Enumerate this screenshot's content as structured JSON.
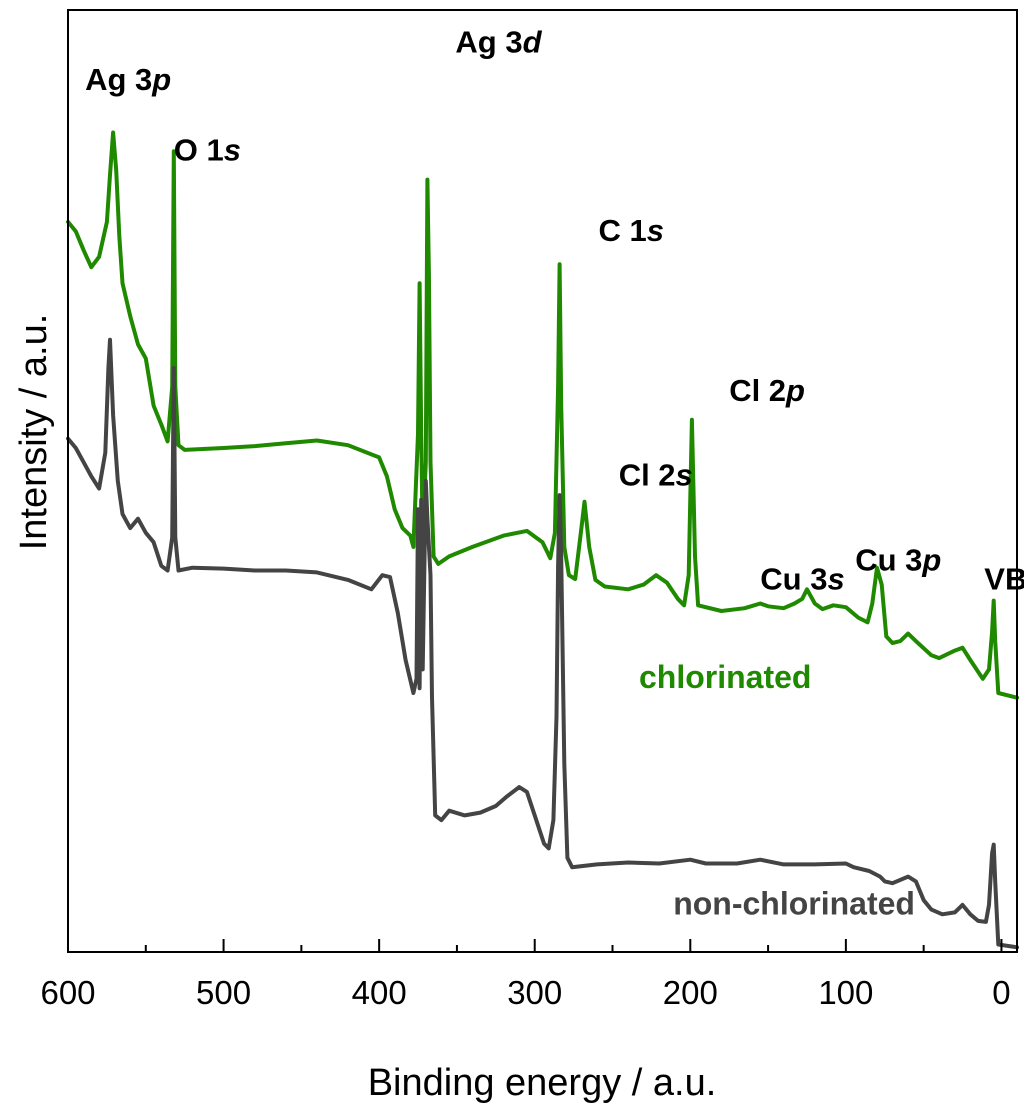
{
  "chart_data": {
    "type": "line",
    "title": "",
    "xlabel": "Binding energy / a.u.",
    "ylabel": "Intensity / a.u.",
    "xlim": [
      600,
      -10
    ],
    "x_reversed": true,
    "ylim": [
      0,
      100
    ],
    "y_ticks_shown": false,
    "x_ticks": [
      600,
      500,
      400,
      300,
      200,
      100,
      0
    ],
    "x_tick_labels": [
      "600",
      "500",
      "400",
      "300",
      "200",
      "100",
      "0"
    ],
    "grid": false,
    "series": [
      {
        "name": "chlorinated",
        "label": "chlorinated",
        "color": "#1f8a00",
        "points": [
          [
            600,
            77.5
          ],
          [
            595,
            76.5
          ],
          [
            590,
            74.5
          ],
          [
            585,
            72.7
          ],
          [
            580,
            73.8
          ],
          [
            575,
            77.5
          ],
          [
            573,
            82.5
          ],
          [
            571,
            87.0
          ],
          [
            569,
            83.0
          ],
          [
            567,
            76.0
          ],
          [
            565,
            71.0
          ],
          [
            560,
            67.5
          ],
          [
            555,
            64.5
          ],
          [
            550,
            63.0
          ],
          [
            545,
            58.0
          ],
          [
            540,
            56.0
          ],
          [
            536,
            54.2
          ],
          [
            533,
            60.0
          ],
          [
            532,
            85.0
          ],
          [
            531,
            60.0
          ],
          [
            529,
            53.8
          ],
          [
            525,
            53.3
          ],
          [
            500,
            53.5
          ],
          [
            480,
            53.7
          ],
          [
            460,
            54.0
          ],
          [
            440,
            54.3
          ],
          [
            420,
            53.8
          ],
          [
            400,
            52.5
          ],
          [
            395,
            50.5
          ],
          [
            390,
            47.0
          ],
          [
            385,
            45.0
          ],
          [
            380,
            44.2
          ],
          [
            378,
            43.0
          ],
          [
            375,
            55.0
          ],
          [
            374,
            71.0
          ],
          [
            373,
            55.0
          ],
          [
            372,
            44.0
          ],
          [
            370,
            52.0
          ],
          [
            369,
            82.0
          ],
          [
            368,
            72.0
          ],
          [
            367,
            52.0
          ],
          [
            365,
            42.0
          ],
          [
            362,
            41.2
          ],
          [
            355,
            42.0
          ],
          [
            340,
            43.0
          ],
          [
            320,
            44.2
          ],
          [
            305,
            44.7
          ],
          [
            295,
            43.5
          ],
          [
            290,
            41.8
          ],
          [
            287,
            44.5
          ],
          [
            285,
            60.0
          ],
          [
            284,
            73.0
          ],
          [
            283,
            58.0
          ],
          [
            281,
            43.0
          ],
          [
            278,
            40.0
          ],
          [
            274,
            39.6
          ],
          [
            270,
            45.0
          ],
          [
            268,
            47.8
          ],
          [
            265,
            43.0
          ],
          [
            261,
            39.5
          ],
          [
            255,
            38.8
          ],
          [
            240,
            38.5
          ],
          [
            230,
            39.0
          ],
          [
            222,
            40.0
          ],
          [
            215,
            39.2
          ],
          [
            208,
            37.5
          ],
          [
            204,
            36.8
          ],
          [
            201,
            40.0
          ],
          [
            199,
            56.5
          ],
          [
            197,
            42.0
          ],
          [
            195,
            36.8
          ],
          [
            180,
            36.2
          ],
          [
            165,
            36.5
          ],
          [
            155,
            37.0
          ],
          [
            150,
            36.7
          ],
          [
            140,
            36.5
          ],
          [
            133,
            37.0
          ],
          [
            128,
            37.5
          ],
          [
            125,
            38.5
          ],
          [
            120,
            37.0
          ],
          [
            115,
            36.4
          ],
          [
            108,
            36.8
          ],
          [
            100,
            36.6
          ],
          [
            92,
            35.5
          ],
          [
            86,
            35.0
          ],
          [
            83,
            37.0
          ],
          [
            80,
            40.8
          ],
          [
            77,
            39.0
          ],
          [
            74,
            33.5
          ],
          [
            70,
            32.8
          ],
          [
            65,
            33.0
          ],
          [
            60,
            33.8
          ],
          [
            55,
            33.0
          ],
          [
            45,
            31.5
          ],
          [
            40,
            31.2
          ],
          [
            30,
            32.0
          ],
          [
            25,
            32.3
          ],
          [
            20,
            31.0
          ],
          [
            12,
            29.0
          ],
          [
            8,
            30.0
          ],
          [
            6,
            34.0
          ],
          [
            5,
            37.3
          ],
          [
            4,
            33.0
          ],
          [
            2,
            27.5
          ],
          [
            -10,
            27.0
          ]
        ]
      },
      {
        "name": "non-chlorinated",
        "label": "non-chlorinated",
        "color": "#444444",
        "points": [
          [
            600,
            54.5
          ],
          [
            595,
            53.5
          ],
          [
            590,
            52.0
          ],
          [
            585,
            50.5
          ],
          [
            580,
            49.2
          ],
          [
            576,
            53.0
          ],
          [
            574,
            62.0
          ],
          [
            573,
            65.0
          ],
          [
            571,
            57.0
          ],
          [
            568,
            50.0
          ],
          [
            565,
            46.5
          ],
          [
            560,
            45.0
          ],
          [
            555,
            46.0
          ],
          [
            550,
            44.5
          ],
          [
            545,
            43.5
          ],
          [
            540,
            41.0
          ],
          [
            536,
            40.5
          ],
          [
            533,
            44.0
          ],
          [
            532,
            62.0
          ],
          [
            531,
            44.0
          ],
          [
            529,
            40.5
          ],
          [
            520,
            40.8
          ],
          [
            500,
            40.7
          ],
          [
            480,
            40.5
          ],
          [
            460,
            40.5
          ],
          [
            440,
            40.3
          ],
          [
            420,
            39.5
          ],
          [
            405,
            38.5
          ],
          [
            398,
            40.0
          ],
          [
            393,
            39.8
          ],
          [
            388,
            36.0
          ],
          [
            383,
            31.0
          ],
          [
            378,
            27.5
          ],
          [
            376,
            29.0
          ],
          [
            375,
            47.0
          ],
          [
            374,
            28.0
          ],
          [
            373,
            48.0
          ],
          [
            372,
            30.0
          ],
          [
            370,
            50.0
          ],
          [
            369,
            46.0
          ],
          [
            367,
            40.0
          ],
          [
            366,
            27.0
          ],
          [
            364,
            14.5
          ],
          [
            360,
            14.0
          ],
          [
            355,
            15.0
          ],
          [
            345,
            14.5
          ],
          [
            335,
            14.8
          ],
          [
            325,
            15.5
          ],
          [
            318,
            16.5
          ],
          [
            310,
            17.5
          ],
          [
            305,
            17.0
          ],
          [
            300,
            14.5
          ],
          [
            294,
            11.5
          ],
          [
            291,
            11.0
          ],
          [
            288,
            14.0
          ],
          [
            286,
            25.0
          ],
          [
            285,
            41.0
          ],
          [
            284,
            48.5
          ],
          [
            283,
            42.0
          ],
          [
            281,
            20.0
          ],
          [
            279,
            10.0
          ],
          [
            276,
            9.0
          ],
          [
            260,
            9.3
          ],
          [
            240,
            9.5
          ],
          [
            220,
            9.4
          ],
          [
            200,
            9.8
          ],
          [
            190,
            9.4
          ],
          [
            170,
            9.4
          ],
          [
            155,
            9.8
          ],
          [
            140,
            9.3
          ],
          [
            120,
            9.3
          ],
          [
            100,
            9.4
          ],
          [
            95,
            9.0
          ],
          [
            85,
            8.6
          ],
          [
            78,
            8.0
          ],
          [
            75,
            7.5
          ],
          [
            70,
            7.3
          ],
          [
            60,
            8.0
          ],
          [
            55,
            7.5
          ],
          [
            50,
            5.5
          ],
          [
            45,
            4.5
          ],
          [
            38,
            4.0
          ],
          [
            30,
            4.2
          ],
          [
            25,
            5.0
          ],
          [
            20,
            4.0
          ],
          [
            15,
            3.3
          ],
          [
            10,
            3.2
          ],
          [
            8,
            5.0
          ],
          [
            6,
            10.5
          ],
          [
            5,
            11.4
          ],
          [
            4,
            7.5
          ],
          [
            2,
            0.8
          ],
          [
            -10,
            0.5
          ]
        ]
      }
    ],
    "annotations": [
      {
        "text": "Ag 3",
        "italic": "p",
        "x": 589,
        "y": 91.5
      },
      {
        "text": "O 1",
        "italic": "s",
        "x": 532,
        "y": 84.0
      },
      {
        "text": "Ag 3",
        "italic": "d",
        "x": 351,
        "y": 95.5
      },
      {
        "text": "C 1",
        "italic": "s",
        "x": 259,
        "y": 75.5
      },
      {
        "text": "Cl 2",
        "italic": "s",
        "x": 246,
        "y": 49.5
      },
      {
        "text": "Cl 2",
        "italic": "p",
        "x": 175,
        "y": 58.5
      },
      {
        "text": "Cu 3",
        "italic": "s",
        "x": 155,
        "y": 38.5
      },
      {
        "text": "Cu 3",
        "italic": "p",
        "x": 94,
        "y": 40.5
      },
      {
        "text": "VB",
        "italic": "",
        "x": 11,
        "y": 38.5
      }
    ],
    "series_labels": [
      {
        "series": 0,
        "x": 233,
        "y": 28.0
      },
      {
        "series": 1,
        "x": 211,
        "y": 4.0
      }
    ]
  }
}
